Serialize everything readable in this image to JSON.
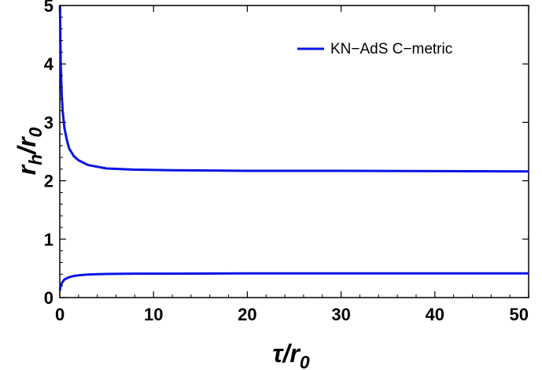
{
  "chart_data": {
    "type": "line",
    "xlabel": {
      "main": "τ/r",
      "sub": "0"
    },
    "ylabel": {
      "main": "r",
      "sub1": "h",
      "mid": "/r",
      "sub2": "0"
    },
    "xlim": [
      0,
      50
    ],
    "ylim": [
      0,
      5
    ],
    "x_ticks": [
      0,
      10,
      20,
      30,
      40,
      50
    ],
    "y_ticks": [
      0,
      1,
      2,
      3,
      4,
      5
    ],
    "grid": false,
    "legend_position": "top-right",
    "color": "#0a14e6",
    "series": [
      {
        "name": "KN−AdS C−metric",
        "branch": "upper",
        "x": [
          0.02,
          0.05,
          0.1,
          0.2,
          0.3,
          0.5,
          0.75,
          1,
          1.5,
          2,
          3,
          5,
          8,
          12,
          20,
          30,
          40,
          50
        ],
        "y": [
          5.0,
          4.6,
          4.0,
          3.5,
          3.2,
          2.9,
          2.7,
          2.55,
          2.42,
          2.35,
          2.27,
          2.21,
          2.19,
          2.18,
          2.17,
          2.17,
          2.165,
          2.16
        ]
      },
      {
        "name": "",
        "branch": "lower",
        "x": [
          0.02,
          0.05,
          0.1,
          0.2,
          0.3,
          0.5,
          1,
          1.5,
          2,
          3,
          5,
          8,
          12,
          20,
          30,
          40,
          50
        ],
        "y": [
          0.12,
          0.17,
          0.2,
          0.24,
          0.27,
          0.31,
          0.35,
          0.37,
          0.38,
          0.395,
          0.405,
          0.41,
          0.41,
          0.415,
          0.415,
          0.415,
          0.415
        ]
      }
    ]
  }
}
